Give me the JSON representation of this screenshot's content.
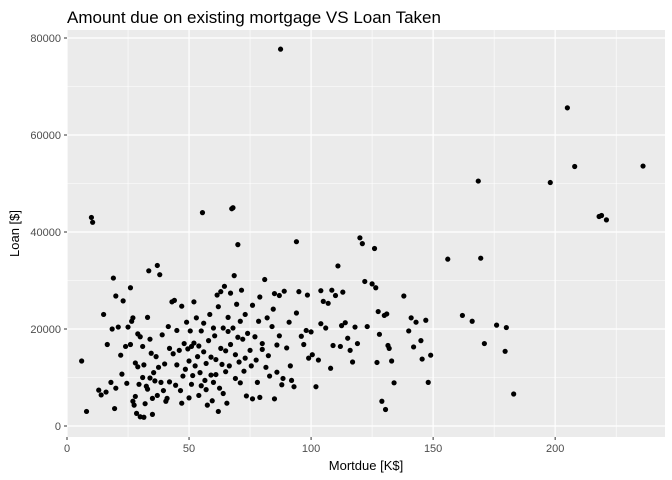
{
  "chart_data": {
    "type": "scatter",
    "title": "Amount due on existing mortgage VS Loan Taken",
    "xlabel": "Mortdue [K$]",
    "ylabel": "Loan [$]",
    "xlim": [
      0,
      245
    ],
    "ylim": [
      0,
      80000
    ],
    "x_ticks": [
      0,
      50,
      100,
      150,
      200
    ],
    "y_ticks": [
      0,
      20000,
      40000,
      60000,
      80000
    ],
    "grid": true,
    "legend": "none",
    "colors": {
      "panel": "#ebebeb",
      "grid": "#ffffff",
      "point": "#000000"
    },
    "points": [
      [
        6,
        13400
      ],
      [
        8,
        3000
      ],
      [
        10,
        43000
      ],
      [
        10.5,
        42000
      ],
      [
        13,
        7400
      ],
      [
        14,
        6400
      ],
      [
        15,
        23000
      ],
      [
        16,
        7000
      ],
      [
        16.5,
        16800
      ],
      [
        18,
        9000
      ],
      [
        18.5,
        20000
      ],
      [
        19,
        30500
      ],
      [
        19.5,
        3600
      ],
      [
        20,
        26800
      ],
      [
        20,
        7800
      ],
      [
        21,
        20400
      ],
      [
        22,
        14600
      ],
      [
        22.5,
        10700
      ],
      [
        23,
        25800
      ],
      [
        24,
        16400
      ],
      [
        24.5,
        8800
      ],
      [
        25,
        20400
      ],
      [
        26,
        16800
      ],
      [
        26,
        28500
      ],
      [
        26.5,
        21600
      ],
      [
        27,
        22300
      ],
      [
        27,
        5100
      ],
      [
        27.5,
        4300
      ],
      [
        28,
        13000
      ],
      [
        28,
        6100
      ],
      [
        28.5,
        2600
      ],
      [
        29,
        19000
      ],
      [
        29,
        12200
      ],
      [
        29.5,
        8600
      ],
      [
        30,
        1900
      ],
      [
        30,
        18400
      ],
      [
        31,
        16400
      ],
      [
        31,
        10000
      ],
      [
        31.5,
        12600
      ],
      [
        31.5,
        1800
      ],
      [
        32,
        4600
      ],
      [
        32.5,
        8200
      ],
      [
        33,
        22400
      ],
      [
        33,
        7600
      ],
      [
        33.5,
        32000
      ],
      [
        34,
        9900
      ],
      [
        34,
        17900
      ],
      [
        34.5,
        15000
      ],
      [
        35,
        5700
      ],
      [
        35,
        2400
      ],
      [
        35.5,
        11000
      ],
      [
        36,
        9300
      ],
      [
        36.5,
        14300
      ],
      [
        37,
        33100
      ],
      [
        37,
        6300
      ],
      [
        37.5,
        12100
      ],
      [
        38,
        31200
      ],
      [
        38.5,
        9000
      ],
      [
        39,
        18800
      ],
      [
        39.5,
        7300
      ],
      [
        40,
        12800
      ],
      [
        40.5,
        5100
      ],
      [
        41,
        5700
      ],
      [
        41.5,
        20500
      ],
      [
        42,
        16000
      ],
      [
        42,
        9100
      ],
      [
        43,
        25600
      ],
      [
        43.5,
        14900
      ],
      [
        44,
        25900
      ],
      [
        44.5,
        8400
      ],
      [
        45,
        19700
      ],
      [
        45,
        12600
      ],
      [
        46,
        15600
      ],
      [
        46.5,
        7300
      ],
      [
        47,
        4700
      ],
      [
        47,
        24700
      ],
      [
        47.5,
        10300
      ],
      [
        48,
        17000
      ],
      [
        48.5,
        11700
      ],
      [
        49,
        21400
      ],
      [
        49.5,
        15900
      ],
      [
        50,
        5800
      ],
      [
        50,
        13400
      ],
      [
        50.5,
        19600
      ],
      [
        51,
        16400
      ],
      [
        51,
        8600
      ],
      [
        51.5,
        10400
      ],
      [
        52,
        17100
      ],
      [
        52,
        25600
      ],
      [
        52.5,
        12400
      ],
      [
        53,
        22300
      ],
      [
        53.5,
        14300
      ],
      [
        54,
        16500
      ],
      [
        54,
        6300
      ],
      [
        54.5,
        11000
      ],
      [
        55,
        19600
      ],
      [
        55,
        8300
      ],
      [
        55.5,
        44000
      ],
      [
        56,
        15300
      ],
      [
        56,
        21200
      ],
      [
        56.5,
        9400
      ],
      [
        57,
        12900
      ],
      [
        57,
        7500
      ],
      [
        57.5,
        4300
      ],
      [
        58,
        17600
      ],
      [
        58.5,
        23000
      ],
      [
        59,
        10500
      ],
      [
        59,
        14200
      ],
      [
        59.5,
        5200
      ],
      [
        60,
        20200
      ],
      [
        60,
        9000
      ],
      [
        60.5,
        18600
      ],
      [
        61,
        13700
      ],
      [
        61,
        10600
      ],
      [
        61.5,
        27000
      ],
      [
        62,
        24600
      ],
      [
        62,
        3000
      ],
      [
        62.5,
        7800
      ],
      [
        63,
        27700
      ],
      [
        63,
        16000
      ],
      [
        63.5,
        12700
      ],
      [
        64,
        20200
      ],
      [
        64,
        6700
      ],
      [
        64.5,
        28800
      ],
      [
        65,
        15500
      ],
      [
        65,
        11200
      ],
      [
        65.5,
        4700
      ],
      [
        66,
        19500
      ],
      [
        66,
        22400
      ],
      [
        66.5,
        12400
      ],
      [
        67,
        27400
      ],
      [
        67,
        16800
      ],
      [
        67.5,
        44800
      ],
      [
        68,
        45000
      ],
      [
        68,
        20200
      ],
      [
        68.5,
        31000
      ],
      [
        69,
        14700
      ],
      [
        69,
        9800
      ],
      [
        69.5,
        25100
      ],
      [
        70,
        37400
      ],
      [
        70,
        18300
      ],
      [
        70.5,
        13200
      ],
      [
        71,
        21600
      ],
      [
        71,
        8900
      ],
      [
        71.5,
        28000
      ],
      [
        72,
        17900
      ],
      [
        72.5,
        11300
      ],
      [
        73,
        14000
      ],
      [
        73,
        23000
      ],
      [
        73.5,
        6200
      ],
      [
        74,
        19100
      ],
      [
        75,
        15600
      ],
      [
        75.5,
        12400
      ],
      [
        76,
        24900
      ],
      [
        76,
        5600
      ],
      [
        77,
        18400
      ],
      [
        77.5,
        13600
      ],
      [
        78,
        9000
      ],
      [
        78.5,
        21600
      ],
      [
        79,
        26600
      ],
      [
        79,
        5900
      ],
      [
        80,
        15800
      ],
      [
        80,
        17000
      ],
      [
        81,
        30200
      ],
      [
        81.5,
        12100
      ],
      [
        82,
        22300
      ],
      [
        82.5,
        14500
      ],
      [
        83,
        10300
      ],
      [
        84,
        20500
      ],
      [
        84.5,
        24100
      ],
      [
        85,
        27300
      ],
      [
        85,
        5600
      ],
      [
        86,
        16700
      ],
      [
        86,
        11100
      ],
      [
        87,
        26900
      ],
      [
        87,
        18600
      ],
      [
        87.5,
        77700
      ],
      [
        88,
        8500
      ],
      [
        88.5,
        9800
      ],
      [
        89,
        27800
      ],
      [
        90,
        16100
      ],
      [
        91,
        21400
      ],
      [
        91.5,
        12400
      ],
      [
        92,
        9400
      ],
      [
        93,
        8100
      ],
      [
        94,
        23300
      ],
      [
        94,
        38000
      ],
      [
        95,
        27700
      ],
      [
        96,
        18500
      ],
      [
        97,
        16800
      ],
      [
        98,
        19700
      ],
      [
        98.5,
        27000
      ],
      [
        99,
        14000
      ],
      [
        100,
        19400
      ],
      [
        100.5,
        14700
      ],
      [
        102,
        8100
      ],
      [
        103,
        13600
      ],
      [
        104,
        21100
      ],
      [
        104,
        27900
      ],
      [
        105,
        25700
      ],
      [
        106,
        20200
      ],
      [
        107,
        25300
      ],
      [
        108,
        11900
      ],
      [
        108.5,
        28000
      ],
      [
        109,
        16600
      ],
      [
        110,
        26900
      ],
      [
        111,
        33000
      ],
      [
        112,
        16400
      ],
      [
        112.5,
        20700
      ],
      [
        113,
        27600
      ],
      [
        114,
        21300
      ],
      [
        115,
        18100
      ],
      [
        116,
        15600
      ],
      [
        117,
        13200
      ],
      [
        118,
        20400
      ],
      [
        119,
        17000
      ],
      [
        120,
        38800
      ],
      [
        121,
        37600
      ],
      [
        122,
        29800
      ],
      [
        123,
        20500
      ],
      [
        125,
        29300
      ],
      [
        126,
        36600
      ],
      [
        126.5,
        28500
      ],
      [
        127,
        13100
      ],
      [
        127.5,
        23600
      ],
      [
        128,
        18900
      ],
      [
        129,
        5100
      ],
      [
        130,
        22800
      ],
      [
        130.5,
        3400
      ],
      [
        131,
        23100
      ],
      [
        131.5,
        16600
      ],
      [
        132,
        16000
      ],
      [
        133,
        13400
      ],
      [
        134,
        8900
      ],
      [
        138,
        26800
      ],
      [
        140,
        19600
      ],
      [
        141,
        22300
      ],
      [
        142,
        16300
      ],
      [
        143,
        21400
      ],
      [
        145,
        17600
      ],
      [
        145.5,
        13800
      ],
      [
        147,
        21800
      ],
      [
        148,
        9000
      ],
      [
        149,
        14600
      ],
      [
        156,
        34400
      ],
      [
        162,
        22800
      ],
      [
        166,
        21600
      ],
      [
        168.5,
        50500
      ],
      [
        169.5,
        34600
      ],
      [
        171,
        17000
      ],
      [
        176,
        20800
      ],
      [
        179.5,
        15400
      ],
      [
        180,
        20300
      ],
      [
        183,
        6600
      ],
      [
        198,
        50200
      ],
      [
        205,
        65600
      ],
      [
        208,
        53500
      ],
      [
        218,
        43200
      ],
      [
        219,
        43400
      ],
      [
        221,
        42500
      ],
      [
        236,
        53600
      ]
    ]
  }
}
